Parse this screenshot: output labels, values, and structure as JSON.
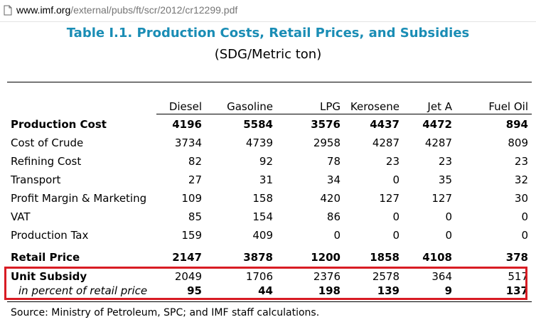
{
  "url": {
    "host": "www.imf.org",
    "path": "/external/pubs/ft/scr/2012/cr12299.pdf"
  },
  "title": "Table I.1. Production Costs, Retail Prices, and Subsidies",
  "subtitle": "(SDG/Metric ton)",
  "columns": [
    "Diesel",
    "Gasoline",
    "LPG",
    "Kerosene",
    "Jet A",
    "Fuel Oil"
  ],
  "rows": [
    {
      "label": "Production Cost",
      "values": [
        "4196",
        "5584",
        "3576",
        "4437",
        "4472",
        "894"
      ]
    },
    {
      "label": "Cost of Crude",
      "values": [
        "3734",
        "4739",
        "2958",
        "4287",
        "4287",
        "809"
      ]
    },
    {
      "label": "Refining Cost",
      "values": [
        "82",
        "92",
        "78",
        "23",
        "23",
        "23"
      ]
    },
    {
      "label": "Transport",
      "values": [
        "27",
        "31",
        "34",
        "0",
        "35",
        "32"
      ]
    },
    {
      "label": "Profit Margin & Marketing",
      "values": [
        "109",
        "158",
        "420",
        "127",
        "127",
        "30"
      ]
    },
    {
      "label": "VAT",
      "values": [
        "85",
        "154",
        "86",
        "0",
        "0",
        "0"
      ]
    },
    {
      "label": "Production Tax",
      "values": [
        "159",
        "409",
        "0",
        "0",
        "0",
        "0"
      ]
    },
    {
      "label": "Retail Price",
      "values": [
        "2147",
        "3878",
        "1200",
        "1858",
        "4108",
        "378"
      ]
    },
    {
      "label": "Unit Subsidy",
      "values": [
        "2049",
        "1706",
        "2376",
        "2578",
        "364",
        "517"
      ]
    },
    {
      "label": "in percent of retail price",
      "values": [
        "95",
        "44",
        "198",
        "139",
        "9",
        "137"
      ]
    }
  ],
  "source": "Source:  Ministry of Petroleum, SPC; and IMF staff calculations.",
  "colors": {
    "title": "#1a8db5",
    "highlight_border": "#d81c24",
    "url_path": "#757575"
  },
  "icons": {
    "page": "document-page-icon"
  }
}
